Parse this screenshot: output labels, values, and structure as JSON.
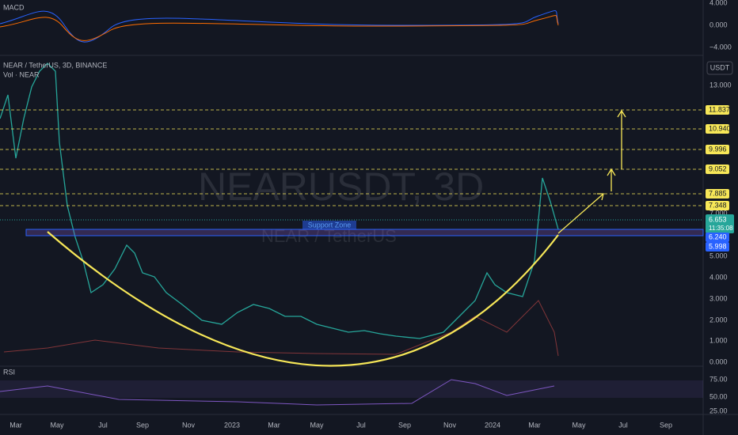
{
  "macd": {
    "title": "MACD",
    "axis": [
      "4.000",
      "0.000",
      "−4.000"
    ]
  },
  "main": {
    "title": "NEAR / TetherUS, 3D, BINANCE",
    "volume": "Vol · NEAR",
    "currency": "USDT",
    "watermark": "NEARUSDT, 3D",
    "watermark_sub": "NEAR / TetherUS",
    "support_label": "Support Zone",
    "price_axis": [
      "13.000",
      "7.000",
      "5.000",
      "4.000",
      "3.000",
      "2.000",
      "1.000",
      "0.000"
    ],
    "levels": [
      "11.837",
      "10.940",
      "9.996",
      "9.052",
      "7.885",
      "7.348"
    ],
    "last_price": "6.653",
    "countdown": "11:35:08",
    "zone": [
      "6.240",
      "5.998"
    ]
  },
  "rsi": {
    "title": "RSI",
    "axis": [
      "75.00",
      "50.00",
      "25.00"
    ]
  },
  "time_axis": [
    "Mar",
    "May",
    "Jul",
    "Sep",
    "Nov",
    "2023",
    "Mar",
    "May",
    "Jul",
    "Sep",
    "Nov",
    "2024",
    "Mar",
    "May",
    "Jul",
    "Sep"
  ]
}
